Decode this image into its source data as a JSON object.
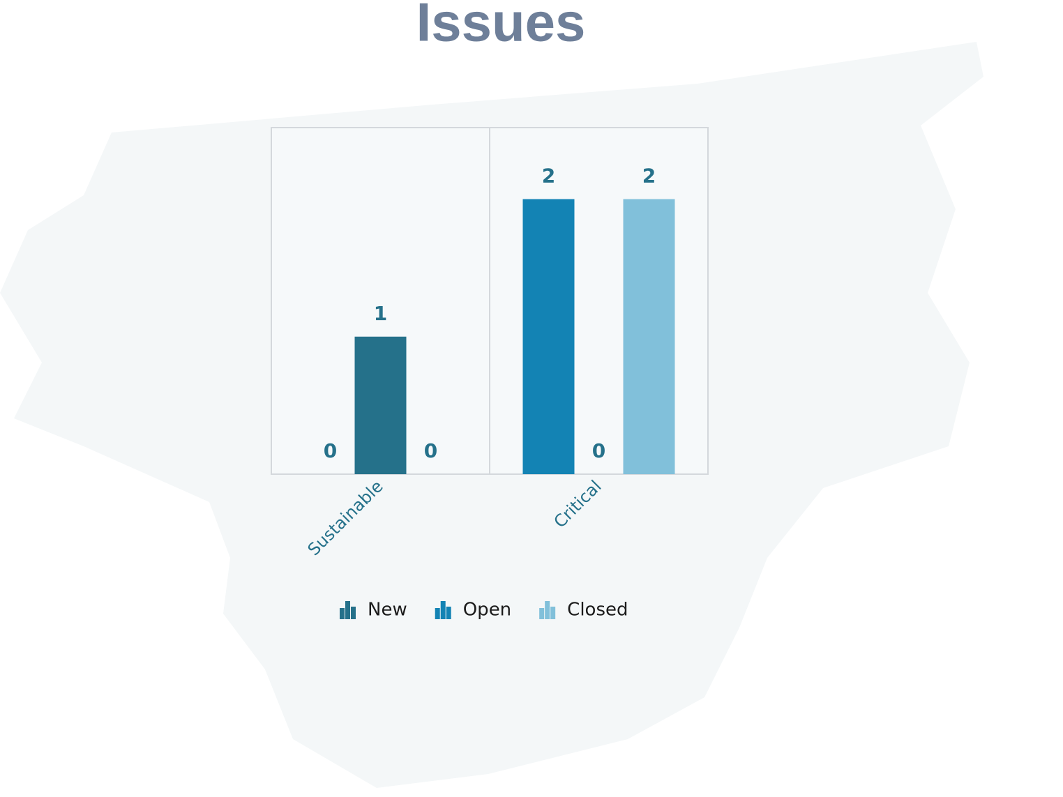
{
  "chart_data": {
    "type": "bar",
    "title": "Issues",
    "categories": [
      "Sustainable",
      "Critical"
    ],
    "series": [
      {
        "name": "New",
        "color": "#25718a",
        "values": [
          1,
          0
        ]
      },
      {
        "name": "Open",
        "color": "#1383b4",
        "values": [
          0,
          2
        ]
      },
      {
        "name": "Closed",
        "color": "#81c0da",
        "values": [
          0,
          2
        ]
      }
    ],
    "ylim": [
      0,
      2.52
    ],
    "legend": "bottom"
  }
}
